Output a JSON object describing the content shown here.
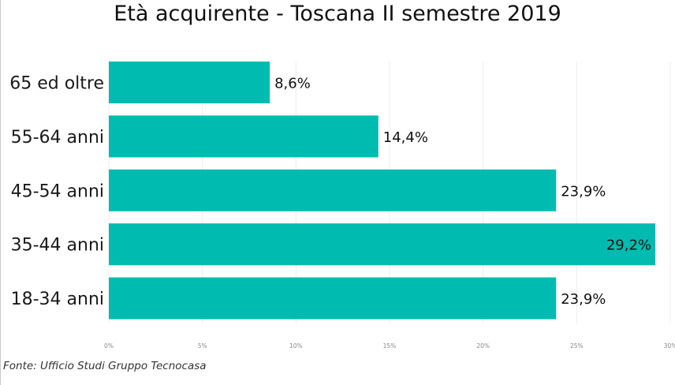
{
  "chart_data": {
    "type": "bar",
    "orientation": "horizontal",
    "title": "Età acquirente - Toscana II semestre 2019",
    "categories": [
      "65 ed oltre",
      "55-64 anni",
      "45-54 anni",
      "35-44 anni",
      "18-34 anni"
    ],
    "values": [
      8.6,
      14.4,
      23.9,
      29.2,
      23.9
    ],
    "value_labels": [
      "8,6%",
      "14,4%",
      "23,9%",
      "29,2%",
      "23,9%"
    ],
    "xlim": [
      0,
      30
    ],
    "x_ticks": [
      0,
      5,
      10,
      15,
      20,
      25,
      30
    ],
    "x_tick_labels": [
      "0%",
      "5%",
      "10%",
      "15%",
      "20%",
      "25%",
      "30%"
    ],
    "grid": true,
    "legend": "none",
    "bar_color": "#00BCB0"
  },
  "source_note": "Fonte: Ufficio Studi Gruppo Tecnocasa"
}
